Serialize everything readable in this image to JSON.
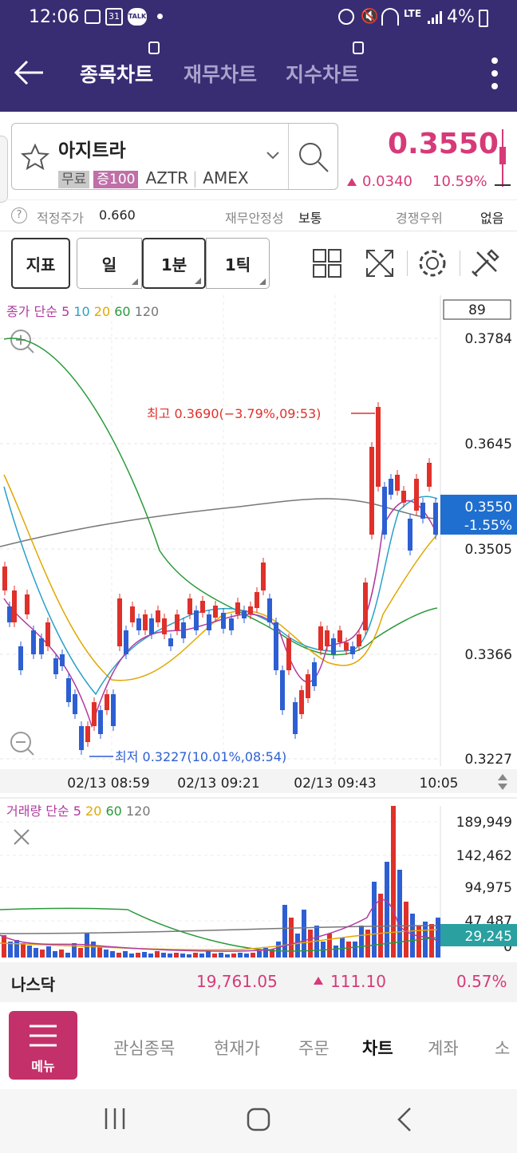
{
  "status": {
    "time": "12:06",
    "battery": "4%",
    "network": "LTE",
    "calendar": "31",
    "talk": "TALK"
  },
  "nav": {
    "tabs": [
      "종목차트",
      "재무차트",
      "지수차트"
    ],
    "active": 0
  },
  "stock": {
    "name": "아지트라",
    "tags": {
      "fee": "무료",
      "margin": "증100"
    },
    "ticker": "AZTR",
    "exchange": "AMEX",
    "price": "0.3550",
    "change": "0.0340",
    "change_pct": "10.59%"
  },
  "info": {
    "fair_price_label": "적정주가",
    "fair_price": "0.660",
    "stability_label": "재무안정성",
    "stability": "보통",
    "competition_label": "경쟁우위",
    "competition": "없음"
  },
  "toolbar": {
    "indicator": "지표",
    "day": "일",
    "min": "1분",
    "tick": "1틱"
  },
  "chart": {
    "ma_label": "종가 단순",
    "ma_periods": [
      "5",
      "10",
      "20",
      "60",
      "120"
    ],
    "count": "89",
    "price_ticks": [
      "0.3784",
      "0.3645",
      "0.3505",
      "0.3366",
      "0.3227"
    ],
    "current_price": "0.3550",
    "current_pct": "-1.55%",
    "high_label": "최고 0.3690(−3.79%,09:53)",
    "low_label": "최저 0.3227(10.01%,08:54)",
    "time_labels": [
      "02/13 08:59",
      "02/13 09:21",
      "02/13 09:43",
      "10:05"
    ]
  },
  "volume": {
    "label": "거래량 단순",
    "periods": [
      "5",
      "20",
      "60",
      "120"
    ],
    "ticks": [
      "189,949",
      "142,462",
      "94,975",
      "47,487",
      "0"
    ],
    "current": "29,245"
  },
  "index": {
    "name": "나스닥",
    "value": "19,761.05",
    "change": "111.10",
    "pct": "0.57%"
  },
  "bottom_nav": {
    "menu": "메뉴",
    "items": [
      "관심종목",
      "현재가",
      "주문",
      "차트",
      "계좌",
      "소"
    ],
    "active": 3
  },
  "colors": {
    "up": "#e0302a",
    "down": "#2d5fd3",
    "header": "#382d72",
    "accent": "#d63a78"
  }
}
